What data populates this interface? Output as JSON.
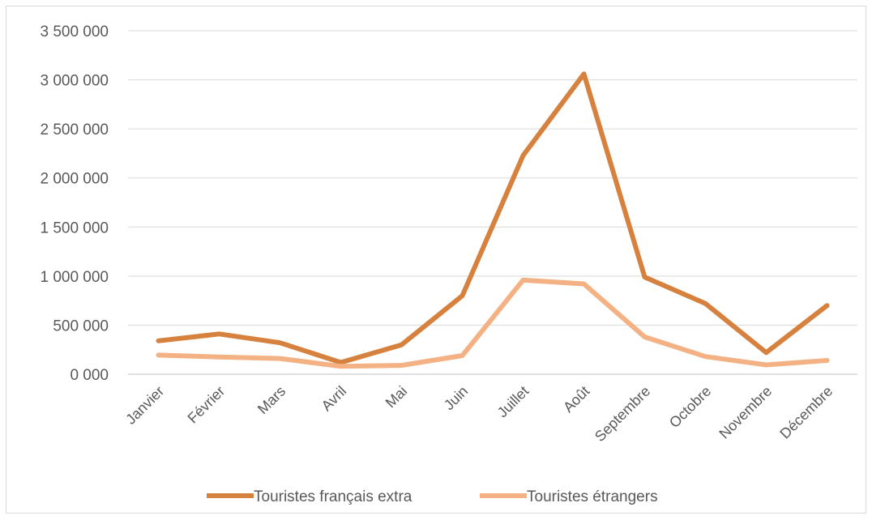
{
  "chart_data": {
    "type": "line",
    "title": "",
    "xlabel": "",
    "ylabel": "",
    "categories": [
      "Janvier",
      "Février",
      "Mars",
      "Avril",
      "Mai",
      "Juin",
      "Juillet",
      "Août",
      "Septembre",
      "Octobre",
      "Novembre",
      "Décembre"
    ],
    "ylim": [
      0,
      3500000
    ],
    "yticks": [
      0,
      500000,
      1000000,
      1500000,
      2000000,
      2500000,
      3000000,
      3500000
    ],
    "ytick_labels": [
      "0 000",
      "500 000",
      "1 000 000",
      "1 500 000",
      "2 000 000",
      "2 500 000",
      "3 000 000",
      "3 500 000"
    ],
    "grid": true,
    "legend_position": "bottom",
    "series": [
      {
        "name": "Touristes français extra",
        "color": "#d7813f",
        "values": [
          340000,
          410000,
          320000,
          120000,
          300000,
          800000,
          2230000,
          3060000,
          990000,
          720000,
          220000,
          700000
        ]
      },
      {
        "name": "Touristes étrangers",
        "color": "#f4b183",
        "values": [
          195000,
          175000,
          160000,
          80000,
          90000,
          190000,
          960000,
          920000,
          380000,
          180000,
          95000,
          140000
        ]
      }
    ]
  }
}
